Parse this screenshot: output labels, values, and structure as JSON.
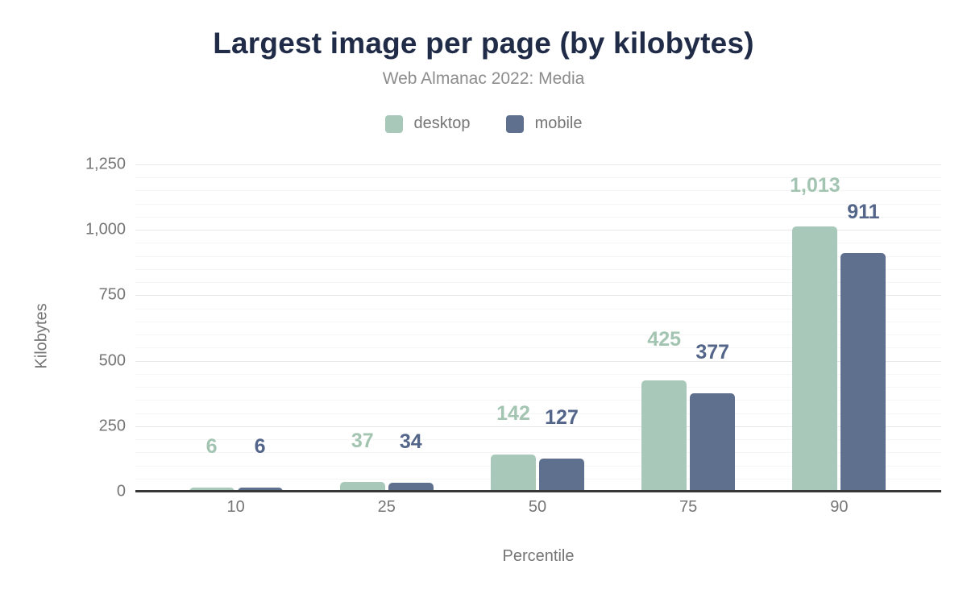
{
  "colors": {
    "title": "#1f2b47",
    "subtitle": "#8c8c8c",
    "axis_text": "#757575",
    "grid_major": "#e8e8e8",
    "grid_minor": "#f5f5f5",
    "axis_line": "#373737"
  },
  "chart_data": {
    "type": "bar",
    "title": "Largest image per page (by kilobytes)",
    "subtitle": "Web Almanac 2022: Media",
    "categories": [
      "10",
      "25",
      "50",
      "75",
      "90"
    ],
    "series": [
      {
        "name": "desktop",
        "color": "#a8c9b9",
        "label_color": "#a2c4b1",
        "values": [
          6,
          37,
          142,
          425,
          1013
        ],
        "value_labels": [
          "6",
          "37",
          "142",
          "425",
          "1,013"
        ]
      },
      {
        "name": "mobile",
        "color": "#5f708f",
        "label_color": "#54658a",
        "values": [
          6,
          34,
          127,
          377,
          911
        ],
        "value_labels": [
          "6",
          "34",
          "127",
          "377",
          "911"
        ]
      }
    ],
    "xlabel": "Percentile",
    "ylabel": "Kilobytes",
    "ylim": [
      0,
      1250
    ],
    "yticks": [
      0,
      250,
      500,
      750,
      1000,
      1250
    ],
    "ytick_labels": [
      "0",
      "250",
      "500",
      "750",
      "1,000",
      "1,250"
    ],
    "major_grid_step": 250,
    "minor_grid_step": 50,
    "grid": true,
    "legend_position": "top"
  }
}
